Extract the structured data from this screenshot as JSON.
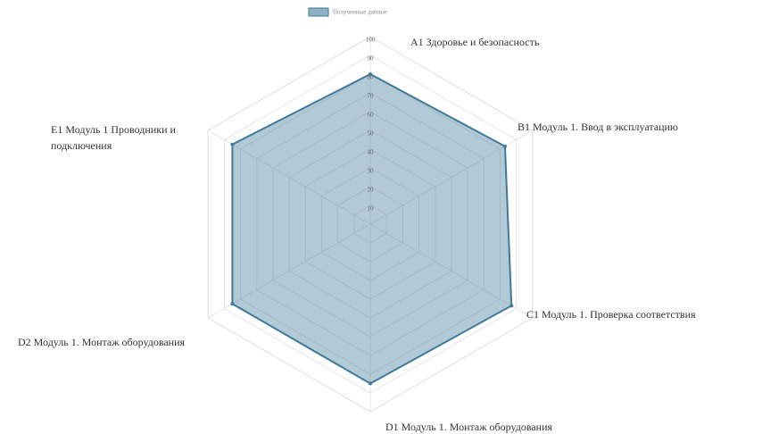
{
  "chart_data": {
    "type": "radar",
    "categories": [
      "A1 Здоровье и безопасность",
      "B1 Модуль 1. Ввод в эксплуатацию",
      "C1 Модуль 1. Проверка соответствия",
      "D1 Модуль 1. Монтаж оборудования",
      "D2 Модуль 1. Монтаж оборудования",
      "E1 Модуль 1 Проводники и подключения"
    ],
    "series": [
      {
        "name": "Полученные данные",
        "color": "#3f7a99",
        "values": [
          80,
          83,
          87,
          85,
          85,
          85
        ]
      }
    ],
    "ylim": [
      0,
      100
    ],
    "yticks": [
      10,
      20,
      30,
      40,
      50,
      60,
      70,
      80,
      90,
      100
    ],
    "grid": true,
    "legend": "top"
  }
}
